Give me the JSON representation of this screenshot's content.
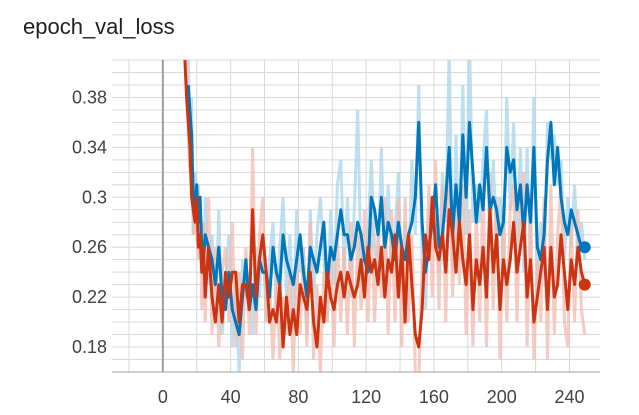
{
  "chart_data": {
    "type": "line",
    "title": "epoch_val_loss",
    "xlabel": "",
    "ylabel": "",
    "xlim": [
      -30,
      258
    ],
    "ylim": [
      0.16,
      0.41
    ],
    "x_ticks": [
      0,
      40,
      80,
      120,
      160,
      200,
      240
    ],
    "y_ticks": [
      0.18,
      0.22,
      0.26,
      0.3,
      0.34,
      0.38
    ],
    "y_tick_labels": [
      "0.18",
      "0.22",
      "0.26",
      "0.3",
      "0.34",
      "0.38"
    ],
    "grid": true,
    "colors": {
      "blue": "#0077bb",
      "red": "#cc3311",
      "blue_raw": "#a8d4ea",
      "red_raw": "#f2b9ad",
      "grid": "#d9d9d9",
      "axis": "#9e9e9e"
    },
    "series": [
      {
        "color": "#0077bb",
        "raw_color": "#a8d4ea",
        "x": [
          15,
          16,
          17,
          18,
          19,
          20,
          21,
          22,
          23,
          24,
          25,
          27,
          29,
          31,
          33,
          35,
          37,
          39,
          41,
          43,
          45,
          47,
          49,
          51,
          53,
          55,
          57,
          59,
          61,
          63,
          65,
          67,
          69,
          71,
          73,
          75,
          77,
          79,
          81,
          83,
          85,
          87,
          89,
          91,
          93,
          95,
          97,
          99,
          101,
          103,
          105,
          107,
          109,
          111,
          113,
          115,
          117,
          119,
          121,
          123,
          125,
          127,
          129,
          131,
          133,
          135,
          137,
          139,
          141,
          143,
          145,
          147,
          149,
          151,
          153,
          155,
          157,
          159,
          161,
          163,
          165,
          167,
          169,
          171,
          173,
          175,
          177,
          179,
          181,
          183,
          185,
          187,
          189,
          191,
          193,
          195,
          197,
          199,
          201,
          203,
          205,
          207,
          209,
          211,
          213,
          215,
          217,
          219,
          221,
          223,
          225,
          227,
          229,
          231,
          233,
          235,
          237,
          239,
          241,
          243,
          245,
          247,
          249
        ],
        "y": [
          0.39,
          0.37,
          0.35,
          0.3,
          0.29,
          0.31,
          0.28,
          0.3,
          0.26,
          0.25,
          0.27,
          0.26,
          0.25,
          0.23,
          0.26,
          0.22,
          0.21,
          0.24,
          0.21,
          0.2,
          0.19,
          0.22,
          0.25,
          0.21,
          0.23,
          0.21,
          0.25,
          0.24,
          0.24,
          0.22,
          0.26,
          0.24,
          0.23,
          0.27,
          0.25,
          0.24,
          0.23,
          0.25,
          0.27,
          0.24,
          0.22,
          0.26,
          0.25,
          0.24,
          0.26,
          0.28,
          0.23,
          0.26,
          0.25,
          0.27,
          0.29,
          0.27,
          0.27,
          0.25,
          0.26,
          0.28,
          0.27,
          0.25,
          0.24,
          0.3,
          0.29,
          0.27,
          0.3,
          0.26,
          0.28,
          0.27,
          0.25,
          0.28,
          0.26,
          0.25,
          0.27,
          0.28,
          0.3,
          0.36,
          0.28,
          0.24,
          0.26,
          0.28,
          0.31,
          0.26,
          0.27,
          0.3,
          0.34,
          0.27,
          0.31,
          0.28,
          0.35,
          0.3,
          0.36,
          0.32,
          0.28,
          0.31,
          0.29,
          0.34,
          0.29,
          0.3,
          0.29,
          0.27,
          0.28,
          0.34,
          0.32,
          0.33,
          0.29,
          0.31,
          0.27,
          0.31,
          0.28,
          0.34,
          0.26,
          0.25,
          0.27,
          0.33,
          0.36,
          0.31,
          0.34,
          0.3,
          0.28,
          0.27,
          0.29,
          0.28,
          0.27,
          0.26,
          0.26
        ],
        "raw_y": [
          0.42,
          0.34,
          0.38,
          0.27,
          0.32,
          0.28,
          0.31,
          0.25,
          0.28,
          0.22,
          0.3,
          0.23,
          0.27,
          0.2,
          0.29,
          0.19,
          0.23,
          0.27,
          0.18,
          0.23,
          0.16,
          0.25,
          0.22,
          0.24,
          0.19,
          0.26,
          0.22,
          0.27,
          0.2,
          0.25,
          0.28,
          0.21,
          0.26,
          0.3,
          0.22,
          0.27,
          0.2,
          0.29,
          0.24,
          0.26,
          0.19,
          0.29,
          0.22,
          0.27,
          0.3,
          0.25,
          0.2,
          0.29,
          0.23,
          0.31,
          0.33,
          0.24,
          0.3,
          0.22,
          0.29,
          0.37,
          0.24,
          0.22,
          0.27,
          0.33,
          0.26,
          0.24,
          0.34,
          0.23,
          0.31,
          0.24,
          0.27,
          0.32,
          0.23,
          0.28,
          0.24,
          0.33,
          0.27,
          0.39,
          0.25,
          0.21,
          0.29,
          0.3,
          0.27,
          0.24,
          0.32,
          0.28,
          0.42,
          0.24,
          0.35,
          0.25,
          0.39,
          0.27,
          0.43,
          0.28,
          0.31,
          0.28,
          0.33,
          0.37,
          0.26,
          0.33,
          0.26,
          0.3,
          0.25,
          0.38,
          0.29,
          0.36,
          0.26,
          0.34,
          0.24,
          0.34,
          0.25,
          0.38,
          0.23,
          0.28,
          0.24,
          0.36,
          0.33,
          0.35,
          0.31,
          0.33,
          0.25,
          0.3,
          0.26,
          0.31,
          0.25,
          0.28,
          0.25
        ]
      },
      {
        "color": "#cc3311",
        "raw_color": "#f2b9ad",
        "x": [
          13,
          14,
          15,
          16,
          17,
          18,
          19,
          20,
          21,
          22,
          23,
          24,
          25,
          27,
          29,
          31,
          33,
          35,
          37,
          39,
          41,
          43,
          45,
          47,
          49,
          51,
          53,
          55,
          57,
          59,
          61,
          63,
          65,
          67,
          69,
          71,
          73,
          75,
          77,
          79,
          81,
          83,
          85,
          87,
          89,
          91,
          93,
          95,
          97,
          99,
          101,
          103,
          105,
          107,
          109,
          111,
          113,
          115,
          117,
          119,
          121,
          123,
          125,
          127,
          129,
          131,
          133,
          135,
          137,
          139,
          141,
          143,
          145,
          147,
          149,
          151,
          153,
          155,
          157,
          159,
          161,
          163,
          165,
          167,
          169,
          171,
          173,
          175,
          177,
          179,
          181,
          183,
          185,
          187,
          189,
          191,
          193,
          195,
          197,
          199,
          201,
          203,
          205,
          207,
          209,
          211,
          213,
          215,
          217,
          219,
          221,
          223,
          225,
          227,
          229,
          231,
          233,
          235,
          237,
          239,
          241,
          243,
          245,
          247,
          249
        ],
        "y": [
          0.41,
          0.38,
          0.36,
          0.34,
          0.3,
          0.29,
          0.28,
          0.3,
          0.26,
          0.27,
          0.24,
          0.26,
          0.22,
          0.26,
          0.22,
          0.2,
          0.23,
          0.2,
          0.24,
          0.22,
          0.24,
          0.24,
          0.2,
          0.23,
          0.23,
          0.21,
          0.29,
          0.22,
          0.25,
          0.27,
          0.24,
          0.2,
          0.21,
          0.2,
          0.23,
          0.18,
          0.22,
          0.19,
          0.21,
          0.19,
          0.23,
          0.22,
          0.21,
          0.24,
          0.2,
          0.18,
          0.22,
          0.2,
          0.24,
          0.22,
          0.21,
          0.23,
          0.24,
          0.22,
          0.24,
          0.23,
          0.22,
          0.23,
          0.25,
          0.22,
          0.26,
          0.24,
          0.25,
          0.23,
          0.26,
          0.22,
          0.25,
          0.24,
          0.27,
          0.22,
          0.26,
          0.2,
          0.27,
          0.23,
          0.19,
          0.18,
          0.21,
          0.27,
          0.25,
          0.3,
          0.26,
          0.25,
          0.27,
          0.24,
          0.29,
          0.27,
          0.24,
          0.28,
          0.25,
          0.23,
          0.27,
          0.21,
          0.25,
          0.23,
          0.26,
          0.22,
          0.29,
          0.24,
          0.27,
          0.21,
          0.25,
          0.23,
          0.25,
          0.28,
          0.24,
          0.26,
          0.28,
          0.22,
          0.25,
          0.2,
          0.22,
          0.24,
          0.26,
          0.21,
          0.26,
          0.22,
          0.23,
          0.27,
          0.24,
          0.21,
          0.25,
          0.23,
          0.26,
          0.24,
          0.23
        ],
        "raw_y": [
          0.43,
          0.4,
          0.35,
          0.32,
          0.33,
          0.27,
          0.31,
          0.27,
          0.25,
          0.3,
          0.21,
          0.28,
          0.2,
          0.3,
          0.19,
          0.26,
          0.18,
          0.24,
          0.26,
          0.2,
          0.28,
          0.18,
          0.24,
          0.17,
          0.26,
          0.19,
          0.34,
          0.19,
          0.27,
          0.3,
          0.2,
          0.23,
          0.17,
          0.24,
          0.17,
          0.22,
          0.19,
          0.24,
          0.16,
          0.25,
          0.19,
          0.26,
          0.18,
          0.28,
          0.17,
          0.23,
          0.16,
          0.24,
          0.2,
          0.26,
          0.18,
          0.27,
          0.2,
          0.26,
          0.19,
          0.28,
          0.18,
          0.27,
          0.21,
          0.29,
          0.2,
          0.28,
          0.2,
          0.27,
          0.22,
          0.3,
          0.19,
          0.29,
          0.2,
          0.3,
          0.18,
          0.3,
          0.2,
          0.27,
          0.16,
          0.15,
          0.25,
          0.23,
          0.31,
          0.22,
          0.33,
          0.21,
          0.31,
          0.2,
          0.34,
          0.22,
          0.3,
          0.23,
          0.31,
          0.19,
          0.29,
          0.18,
          0.29,
          0.2,
          0.31,
          0.18,
          0.32,
          0.21,
          0.3,
          0.17,
          0.29,
          0.2,
          0.29,
          0.31,
          0.2,
          0.3,
          0.32,
          0.18,
          0.29,
          0.17,
          0.25,
          0.2,
          0.3,
          0.17,
          0.31,
          0.19,
          0.27,
          0.31,
          0.2,
          0.18,
          0.28,
          0.2,
          0.29,
          0.21,
          0.19
        ]
      }
    ]
  }
}
